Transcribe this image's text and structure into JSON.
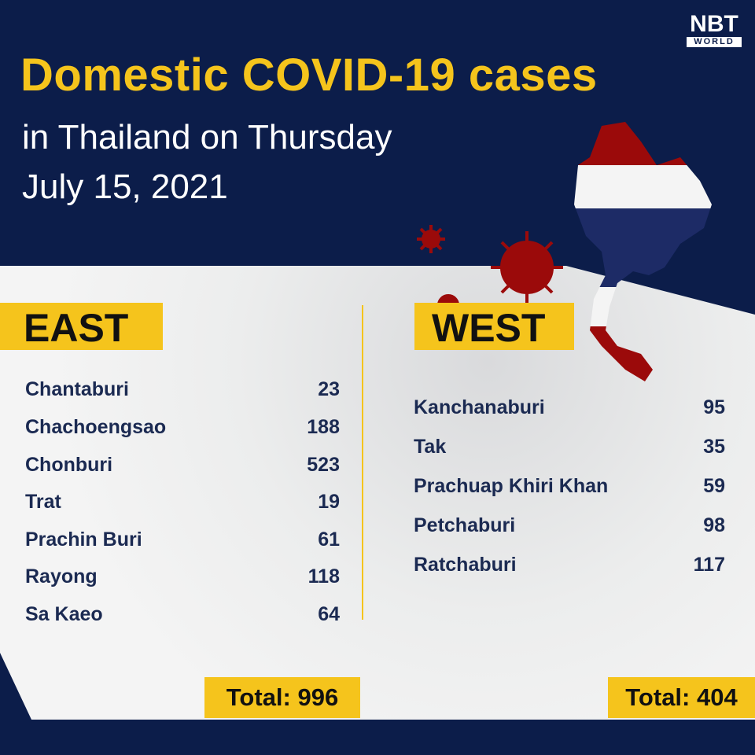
{
  "title": "Domestic COVID-19 cases",
  "subtitle_line1": "in Thailand on Thursday",
  "subtitle_line2": "July 15, 2021",
  "logo": {
    "main": "NBT",
    "sub": "WORLD"
  },
  "colors": {
    "navy": "#0c1d4a",
    "yellow": "#f5c41c",
    "red": "#9b0a0a"
  },
  "east": {
    "heading": "EAST",
    "rows": [
      {
        "province": "Chantaburi",
        "cases": "23"
      },
      {
        "province": "Chachoengsao",
        "cases": "188"
      },
      {
        "province": "Chonburi",
        "cases": "523"
      },
      {
        "province": "Trat",
        "cases": "19"
      },
      {
        "province": "Prachin Buri",
        "cases": "61"
      },
      {
        "province": "Rayong",
        "cases": "118"
      },
      {
        "province": "Sa Kaeo",
        "cases": "64"
      }
    ],
    "total": "Total: 996"
  },
  "west": {
    "heading": "WEST",
    "rows": [
      {
        "province": "Kanchanaburi",
        "cases": "95"
      },
      {
        "province": "Tak",
        "cases": "35"
      },
      {
        "province": "Prachuap Khiri Khan",
        "cases": "59"
      },
      {
        "province": "Petchaburi",
        "cases": "98"
      },
      {
        "province": "Ratchaburi",
        "cases": "117"
      }
    ],
    "total": "Total: 404"
  }
}
